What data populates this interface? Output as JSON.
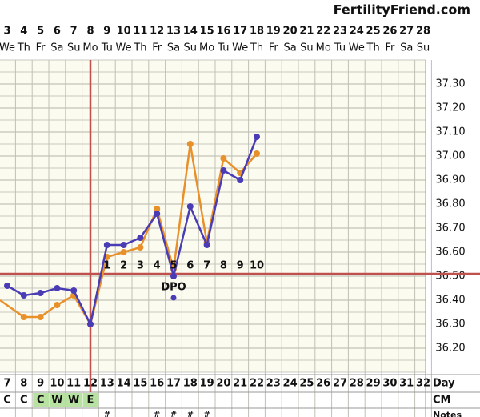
{
  "chart_data": {
    "type": "line",
    "title": "FertilityFriend.com",
    "categories": [
      "3",
      "4",
      "5",
      "6",
      "7",
      "8",
      "9",
      "10",
      "11",
      "12",
      "13",
      "14",
      "15",
      "16",
      "17",
      "18",
      "19",
      "20",
      "21",
      "22",
      "23",
      "24",
      "25",
      "26",
      "27",
      "28"
    ],
    "weekdays": [
      "We",
      "Th",
      "Fr",
      "Sa",
      "Su",
      "Mo",
      "Tu",
      "We",
      "Th",
      "Fr",
      "Sa",
      "Su",
      "Mo",
      "Tu",
      "We",
      "Th",
      "Fr",
      "Sa",
      "Su",
      "Mo",
      "Tu",
      "We",
      "Th",
      "Fr",
      "Sa",
      "Su"
    ],
    "series": [
      {
        "color": "#e8902a",
        "values": [
          36.4,
          36.33,
          36.33,
          36.38,
          36.42,
          36.3,
          36.58,
          36.6,
          36.62,
          36.78,
          36.53,
          37.05,
          36.64,
          36.99,
          36.93,
          37.01,
          null,
          null,
          null,
          null,
          null,
          null,
          null,
          null,
          null,
          null
        ]
      },
      {
        "color": "#4a3cb4",
        "values": [
          36.46,
          36.42,
          36.43,
          36.45,
          36.44,
          36.3,
          36.63,
          36.63,
          36.66,
          36.76,
          36.5,
          36.79,
          36.63,
          36.94,
          36.9,
          37.08,
          null,
          null,
          null,
          null,
          null,
          null,
          null,
          null,
          null,
          null
        ]
      }
    ],
    "extra_point": {
      "category": "13",
      "value": 36.41,
      "color": "#4a3cb4"
    },
    "coverline": 36.51,
    "ovulation_date": "8",
    "dpo": [
      null,
      null,
      null,
      null,
      null,
      null,
      "1",
      "2",
      "3",
      "4",
      "5",
      "6",
      "7",
      "8",
      "9",
      "10",
      null,
      null,
      null,
      null,
      null,
      null,
      null,
      null,
      null,
      null
    ],
    "dpo_label": "DPO",
    "ylim": [
      36.1,
      37.4
    ],
    "yticks": [
      {
        "value": 36.2,
        "label": "36.20"
      },
      {
        "value": 36.3,
        "label": "36.30"
      },
      {
        "value": 36.4,
        "label": "36.40"
      },
      {
        "value": 36.5,
        "label": "36.50"
      },
      {
        "value": 36.6,
        "label": "36.60"
      },
      {
        "value": 36.7,
        "label": "36.70"
      },
      {
        "value": 36.8,
        "label": "36.80"
      },
      {
        "value": 36.9,
        "label": "36.90"
      },
      {
        "value": 37.0,
        "label": "37.00"
      },
      {
        "value": 37.1,
        "label": "37.10"
      },
      {
        "value": 37.2,
        "label": "37.20"
      },
      {
        "value": 37.3,
        "label": "37.30"
      }
    ],
    "cycle_days": [
      "7",
      "8",
      "9",
      "10",
      "11",
      "12",
      "13",
      "14",
      "15",
      "16",
      "17",
      "18",
      "19",
      "20",
      "21",
      "22",
      "23",
      "24",
      "25",
      "26",
      "27",
      "28",
      "29",
      "30",
      "31",
      "32"
    ],
    "day_label": "Day",
    "cm": [
      "C",
      "C",
      "C",
      "W",
      "W",
      "E",
      null,
      null,
      null,
      null,
      null,
      null,
      null,
      null,
      null,
      null,
      null,
      null,
      null,
      null,
      null,
      null,
      null,
      null,
      null,
      null
    ],
    "cm_label": "CM",
    "notes": [
      null,
      null,
      null,
      null,
      null,
      null,
      "#",
      null,
      null,
      "#",
      "#",
      "#",
      "#",
      null,
      null,
      null,
      null,
      null,
      null,
      null,
      null,
      null,
      null,
      null,
      null,
      null
    ],
    "notes_label": "Notes",
    "grid": true
  }
}
